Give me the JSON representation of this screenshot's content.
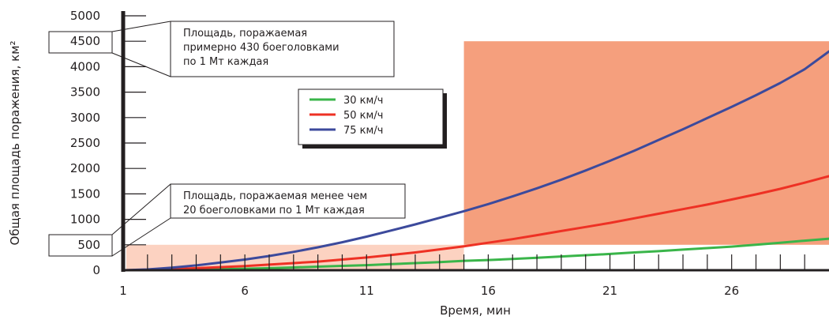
{
  "chart_data": {
    "type": "line",
    "title": "",
    "xlabel": "Время, мин",
    "ylabel": "Общая площадь поражения, км²",
    "xlim": [
      1,
      30
    ],
    "ylim": [
      0,
      5000
    ],
    "x_ticks": [
      1,
      6,
      11,
      16,
      21,
      26
    ],
    "y_ticks": [
      0,
      500,
      1000,
      1500,
      2000,
      2500,
      3000,
      3500,
      4000,
      4500,
      5000
    ],
    "grid": false,
    "legend": {
      "position": "top-center",
      "entries": [
        "30 км/ч",
        "50 км/ч",
        "75 км/ч"
      ]
    },
    "x": [
      1,
      2,
      3,
      4,
      5,
      6,
      7,
      8,
      9,
      10,
      11,
      12,
      13,
      14,
      15,
      16,
      17,
      18,
      19,
      20,
      21,
      22,
      23,
      24,
      25,
      26,
      27,
      28,
      29,
      30
    ],
    "series": [
      {
        "name": "30 км/ч",
        "color": "#3ab54a",
        "values": [
          0,
          1,
          5,
          12,
          20,
          30,
          40,
          55,
          70,
          85,
          100,
          120,
          140,
          160,
          185,
          200,
          220,
          245,
          270,
          295,
          320,
          350,
          375,
          405,
          435,
          465,
          500,
          540,
          580,
          620
        ]
      },
      {
        "name": "50 км/ч",
        "color": "#ee3124",
        "values": [
          0,
          5,
          20,
          40,
          60,
          80,
          110,
          140,
          170,
          210,
          250,
          300,
          350,
          410,
          470,
          540,
          610,
          690,
          770,
          850,
          930,
          1020,
          1110,
          1200,
          1290,
          1390,
          1490,
          1600,
          1720,
          1850
        ]
      },
      {
        "name": "75 км/ч",
        "color": "#3c4a9c",
        "values": [
          0,
          15,
          50,
          95,
          150,
          210,
          280,
          360,
          450,
          550,
          660,
          780,
          900,
          1030,
          1160,
          1300,
          1450,
          1610,
          1780,
          1960,
          2150,
          2350,
          2560,
          2770,
          2990,
          3210,
          3440,
          3680,
          3950,
          4300
        ]
      }
    ],
    "regions": [
      {
        "label": "Площадь, поражаемая менее чем 20 боеголовками по 1 Мт каждая",
        "x_range": [
          1,
          15
        ],
        "y_range": [
          0,
          500
        ],
        "color": "#fcd2c1"
      },
      {
        "label": "Площадь, поражаемая примерно 430 боеголовками по 1 Мт каждая",
        "x_range": [
          15,
          30
        ],
        "y_range": [
          500,
          4500
        ],
        "color": "#f59f7d"
      }
    ],
    "annotations": [
      {
        "lines": [
          "Площадь, поражаемая",
          "примерно 430 боеголовками",
          "по 1 Мт каждая"
        ],
        "value": "4500"
      },
      {
        "lines": [
          "Площадь, поражаемая менее чем",
          "20 боеголовками по 1 Мт каждая"
        ],
        "value": "500"
      }
    ]
  }
}
